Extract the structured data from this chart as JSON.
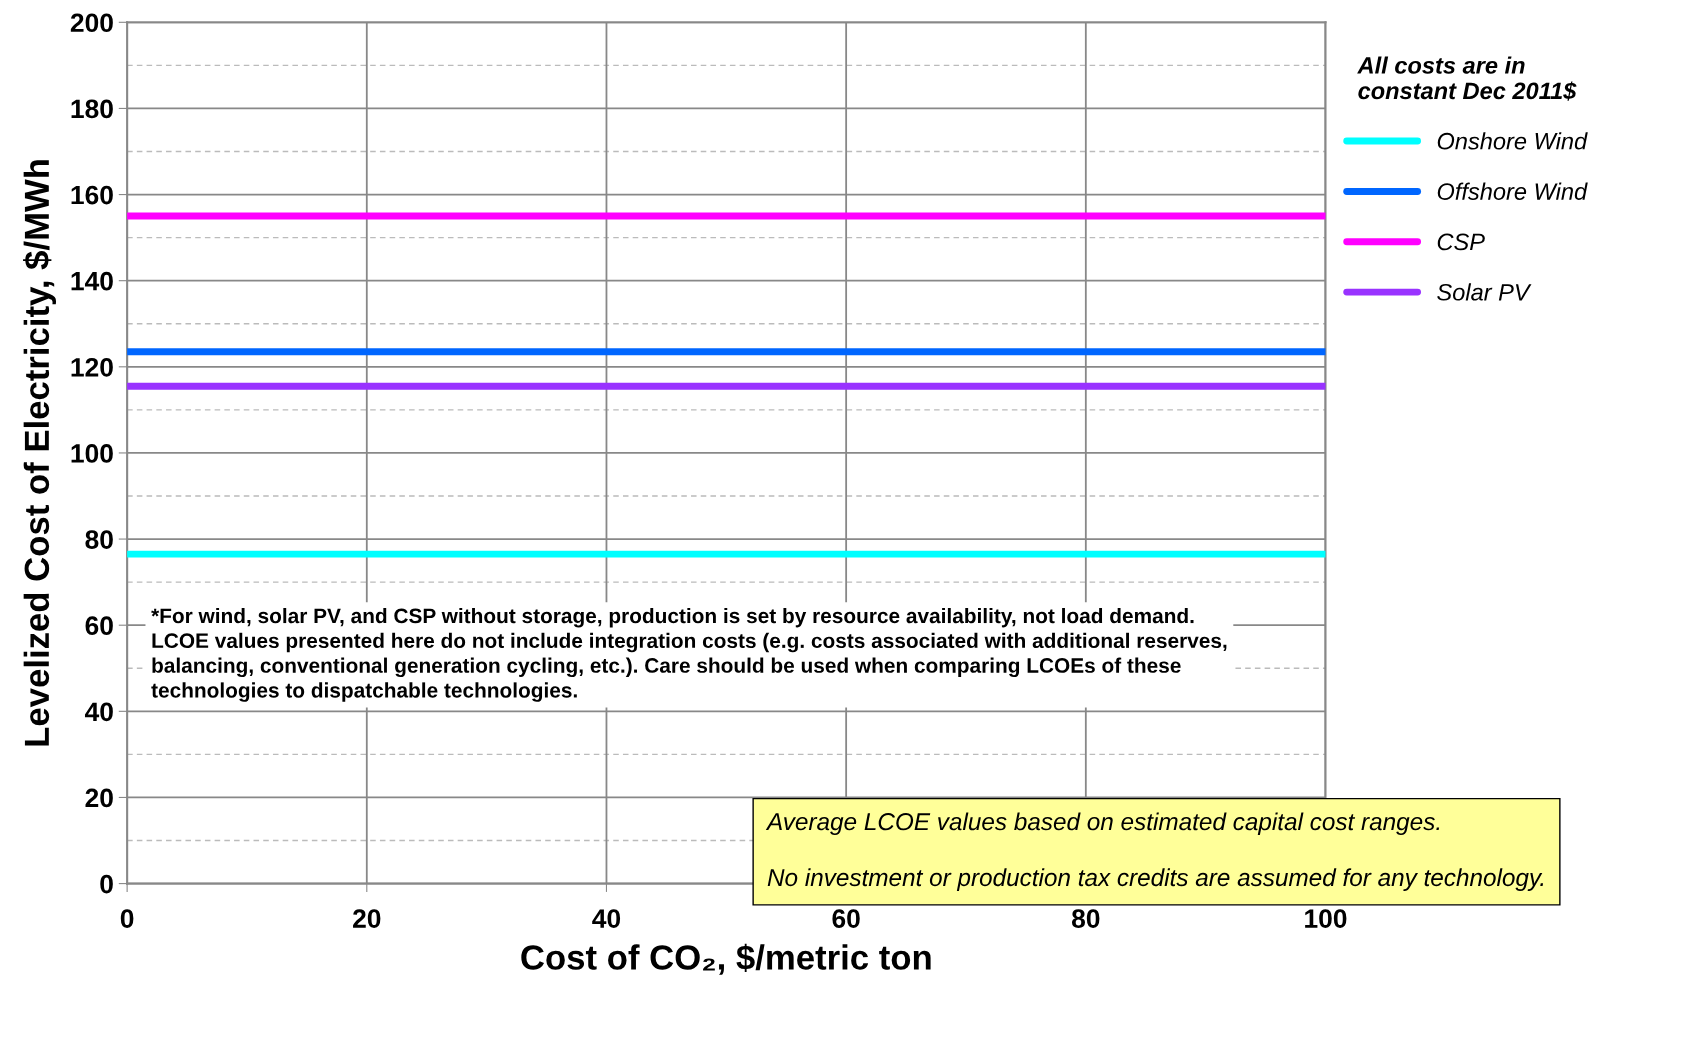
{
  "chart_data": {
    "type": "line",
    "xlabel": "Cost of CO₂, $/metric ton",
    "ylabel": "Levelized Cost of Electricity, $/MWh",
    "x": [
      0,
      100
    ],
    "series": [
      {
        "name": "Onshore Wind",
        "color": "#00ffff",
        "values": [
          76.5,
          76.5
        ]
      },
      {
        "name": "Offshore Wind",
        "color": "#0066ff",
        "values": [
          123.5,
          123.5
        ]
      },
      {
        "name": "CSP",
        "color": "#ff00ff",
        "values": [
          155,
          155
        ]
      },
      {
        "name": "Solar PV",
        "color": "#9933ff",
        "values": [
          115.5,
          115.5
        ]
      }
    ],
    "legend_title": "All costs are in\nconstant Dec 2011$",
    "legend": "right",
    "xlim": [
      0,
      100
    ],
    "xticks": [
      0,
      20,
      40,
      60,
      80,
      100
    ],
    "ylim": [
      0,
      200
    ],
    "yticks": [
      0,
      20,
      40,
      60,
      80,
      100,
      120,
      140,
      160,
      180,
      200
    ],
    "grid": true,
    "marker": "none",
    "line_style": "solid",
    "annotations": [
      "*For wind, solar PV, and CSP without storage, production is set by resource availability, not load demand.\nLCOE values presented here do not include integration costs (e.g. costs associated with additional reserves,\nbalancing, conventional generation cycling, etc.). Care should be used when comparing LCOEs of these\ntechnologies to dispatchable technologies.",
      "Average LCOE values based on estimated capital cost ranges.\n\nNo investment or production tax credits are assumed for any technology."
    ]
  }
}
